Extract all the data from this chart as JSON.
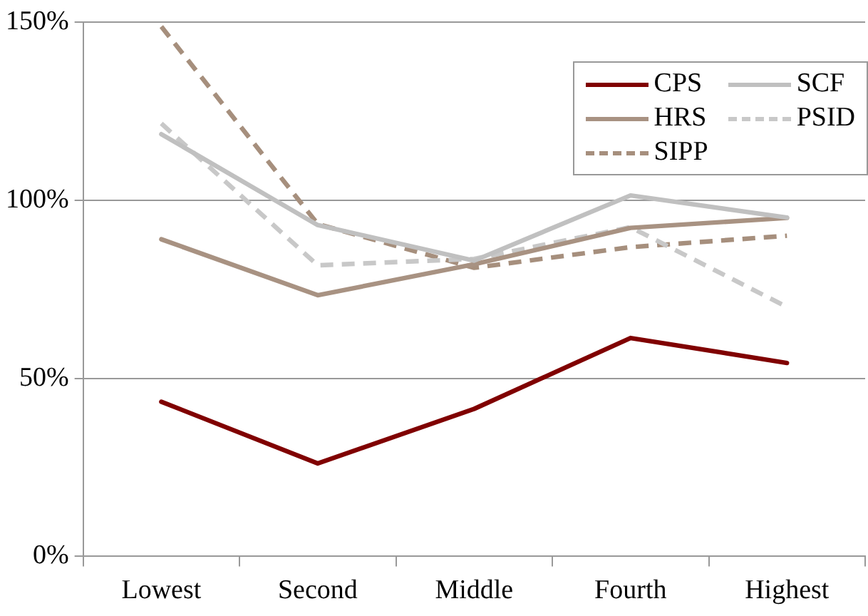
{
  "chart_data": {
    "type": "line",
    "categories": [
      "Lowest",
      "Second",
      "Middle",
      "Fourth",
      "Highest"
    ],
    "series": [
      {
        "name": "CPS",
        "color": "#800000",
        "line_style": "solid",
        "values": [
          43.4,
          26.1,
          41.4,
          61.3,
          54.3
        ]
      },
      {
        "name": "SCF",
        "color": "#c0c0c0",
        "line_style": "solid",
        "values": [
          118.5,
          93,
          83,
          101.3,
          95.1
        ]
      },
      {
        "name": "HRS",
        "color": "#a89282",
        "line_style": "solid",
        "values": [
          89,
          73.3,
          82,
          92.2,
          95
        ]
      },
      {
        "name": "PSID",
        "color": "#c8c8c8",
        "line_style": "dashed",
        "values": [
          121.5,
          81.7,
          83.5,
          92.4,
          70
        ]
      },
      {
        "name": "SIPP",
        "color": "#a68f7d",
        "line_style": "dashed",
        "values": [
          148.7,
          93.3,
          81,
          86.8,
          90
        ]
      }
    ],
    "ylim": [
      0,
      150
    ],
    "yticks": [
      {
        "value": 0,
        "label": "0%"
      },
      {
        "value": 50,
        "label": "50%"
      },
      {
        "value": 100,
        "label": "100%"
      },
      {
        "value": 150,
        "label": "150%"
      }
    ],
    "grid": "y",
    "legend": "top right",
    "marker": "none"
  }
}
